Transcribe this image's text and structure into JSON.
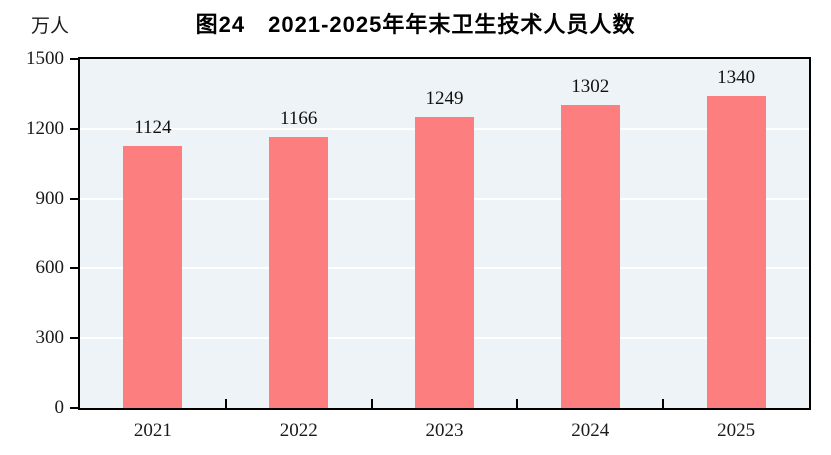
{
  "chart_data": {
    "type": "bar",
    "title": "图24　2021-2025年年末卫生技术人员人数",
    "ylabel": "万人",
    "xlabel": "",
    "categories": [
      "2021",
      "2022",
      "2023",
      "2024",
      "2025"
    ],
    "values": [
      1124,
      1166,
      1249,
      1302,
      1340
    ],
    "ylim": [
      0,
      1500
    ],
    "yticks": [
      0,
      300,
      600,
      900,
      1200,
      1500
    ],
    "grid": true,
    "legend": "none",
    "colors": {
      "bar": "#FC7E7E",
      "plot_background": "#EDF3F7",
      "gridline": "#FFFFFF",
      "axis": "#000000",
      "text": "#111111"
    }
  }
}
